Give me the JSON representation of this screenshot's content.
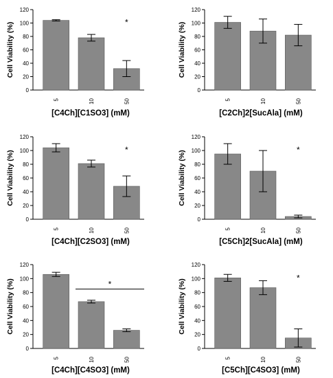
{
  "chart_data": [
    {
      "type": "bar",
      "title": "",
      "xlabel": "[C4Ch][C1SO3] (mM)",
      "ylabel": "Cell Viability (%)",
      "categories": [
        "5",
        "10",
        "50"
      ],
      "values": [
        104,
        78,
        32
      ],
      "errors": [
        1,
        5,
        12
      ],
      "ylim": [
        0,
        120
      ],
      "yticks": [
        "0",
        "20",
        "40",
        "60",
        "80",
        "100",
        "120"
      ],
      "significance": [
        {
          "category": "50",
          "label": "*"
        }
      ],
      "bar_color": "#888888"
    },
    {
      "type": "bar",
      "title": "",
      "xlabel": "[C2Ch]2[SucAla] (mM)",
      "ylabel": "Cell Viability (%)",
      "categories": [
        "5",
        "10",
        "50"
      ],
      "values": [
        101,
        88,
        82
      ],
      "errors": [
        9,
        18,
        16
      ],
      "ylim": [
        0,
        120
      ],
      "yticks": [
        "0",
        "20",
        "40",
        "60",
        "80",
        "100",
        "120"
      ],
      "significance": [],
      "bar_color": "#888888"
    },
    {
      "type": "bar",
      "title": "",
      "xlabel": "[C4Ch][C2SO3] (mM)",
      "ylabel": "Cell Viability (%)",
      "categories": [
        "5",
        "10",
        "50"
      ],
      "values": [
        104,
        81,
        48
      ],
      "errors": [
        6,
        5,
        15
      ],
      "ylim": [
        0,
        120
      ],
      "yticks": [
        "0",
        "20",
        "40",
        "60",
        "80",
        "100",
        "120"
      ],
      "significance": [
        {
          "category": "50",
          "label": "*"
        }
      ],
      "bar_color": "#888888"
    },
    {
      "type": "bar",
      "title": "",
      "xlabel": "[C5Ch]2[SucAla] (mM)",
      "ylabel": "Cell Viability (%)",
      "categories": [
        "5",
        "10",
        "50"
      ],
      "values": [
        95,
        70,
        4
      ],
      "errors": [
        15,
        30,
        2
      ],
      "ylim": [
        0,
        120
      ],
      "yticks": [
        "0",
        "20",
        "40",
        "60",
        "80",
        "100",
        "120"
      ],
      "significance": [
        {
          "category": "50",
          "label": "*"
        }
      ],
      "bar_color": "#888888"
    },
    {
      "type": "bar",
      "title": "",
      "xlabel": "[C4Ch][C4SO3] (mM)",
      "ylabel": "Cell Viability (%)",
      "categories": [
        "5",
        "10",
        "50"
      ],
      "values": [
        106,
        67,
        26
      ],
      "errors": [
        3,
        2,
        2
      ],
      "ylim": [
        0,
        120
      ],
      "yticks": [
        "0",
        "20",
        "40",
        "60",
        "80",
        "100",
        "120"
      ],
      "significance": [
        {
          "span": [
            "10",
            "50"
          ],
          "label": "*",
          "bracket": true
        }
      ],
      "bar_color": "#888888"
    },
    {
      "type": "bar",
      "title": "",
      "xlabel": "[C5Ch][C4SO3] (mM)",
      "ylabel": "Cell Viability (%)",
      "categories": [
        "5",
        "10",
        "50"
      ],
      "values": [
        101,
        87,
        15
      ],
      "errors": [
        5,
        10,
        13
      ],
      "ylim": [
        0,
        120
      ],
      "yticks": [
        "0",
        "20",
        "40",
        "60",
        "80",
        "100",
        "120"
      ],
      "significance": [
        {
          "category": "50",
          "label": "*"
        }
      ],
      "bar_color": "#888888"
    }
  ]
}
